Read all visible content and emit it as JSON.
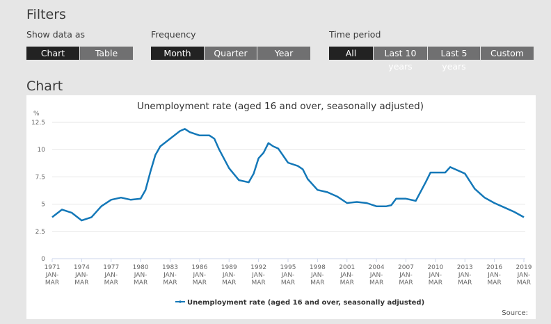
{
  "filters": {
    "title": "Filters",
    "groups": [
      {
        "label": "Show data as",
        "options": [
          "Chart",
          "Table"
        ],
        "selected": "Chart"
      },
      {
        "label": "Frequency",
        "options": [
          "Month",
          "Quarter",
          "Year"
        ],
        "selected": "Month"
      },
      {
        "label": "Time period",
        "options": [
          "All",
          "Last 10 years",
          "Last 5 years",
          "Custom"
        ],
        "selected": "All"
      }
    ]
  },
  "chart_section_title": "Chart",
  "source_label": "Source:",
  "colors": {
    "line": "#1478b8",
    "active_button": "#222222",
    "inactive_button": "#707071"
  },
  "chart_data": {
    "type": "line",
    "title": "Unemployment rate (aged 16 and over, seasonally adjusted)",
    "ylabel": "%",
    "ylim": [
      0,
      12.5
    ],
    "yticks": [
      0,
      2.5,
      5,
      7.5,
      10,
      12.5
    ],
    "ytick_labels": [
      "0",
      "2.5",
      "5",
      "7.5",
      "10",
      "12.5"
    ],
    "xlim": [
      1971,
      2019
    ],
    "xticks": [
      1971,
      1974,
      1977,
      1980,
      1983,
      1986,
      1989,
      1992,
      1995,
      1998,
      2001,
      2004,
      2007,
      2010,
      2013,
      2016,
      2019
    ],
    "xtick_sub": "JAN-MAR",
    "grid": true,
    "legend_placement": "bottom",
    "series": [
      {
        "name": "Unemployment rate (aged 16 and over, seasonally adjusted)",
        "x": [
          1971,
          1972,
          1973,
          1974,
          1975,
          1976,
          1977,
          1978,
          1979,
          1980,
          1980.5,
          1981,
          1981.5,
          1982,
          1983,
          1984,
          1984.5,
          1985,
          1986,
          1987,
          1987.5,
          1988,
          1989,
          1990,
          1991,
          1991.5,
          1992,
          1992.5,
          1993,
          1993.5,
          1994,
          1995,
          1996,
          1996.5,
          1997,
          1998,
          1999,
          2000,
          2001,
          2002,
          2003,
          2004,
          2005,
          2005.5,
          2006,
          2007,
          2008,
          2009,
          2009.5,
          2010,
          2011,
          2011.5,
          2012,
          2013,
          2014,
          2015,
          2016,
          2017,
          2018,
          2019
        ],
        "y": [
          3.8,
          4.5,
          4.2,
          3.5,
          3.8,
          4.8,
          5.4,
          5.6,
          5.4,
          5.5,
          6.3,
          8.0,
          9.5,
          10.3,
          11.0,
          11.7,
          11.9,
          11.6,
          11.3,
          11.3,
          11.0,
          10.0,
          8.3,
          7.2,
          7.0,
          7.8,
          9.2,
          9.7,
          10.6,
          10.3,
          10.1,
          8.8,
          8.5,
          8.2,
          7.3,
          6.3,
          6.1,
          5.7,
          5.1,
          5.2,
          5.1,
          4.8,
          4.8,
          4.9,
          5.5,
          5.5,
          5.3,
          7.0,
          7.9,
          7.9,
          7.9,
          8.4,
          8.2,
          7.8,
          6.4,
          5.6,
          5.1,
          4.7,
          4.3,
          3.8
        ]
      }
    ]
  }
}
